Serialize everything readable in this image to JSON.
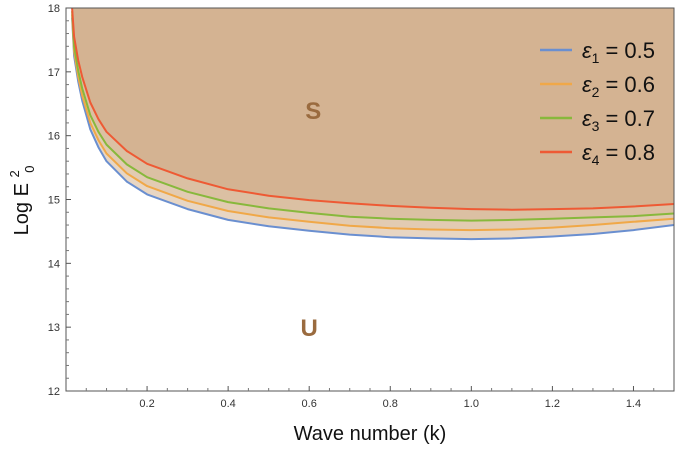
{
  "chart_data": {
    "type": "line",
    "title": "",
    "xlabel": "Wave number (k)",
    "ylabel": {
      "base": "Log E",
      "superscript": "2",
      "subscript": "0"
    },
    "xlim": [
      0.0,
      1.5
    ],
    "ylim": [
      12,
      18
    ],
    "xticks": [
      0.2,
      0.4,
      0.6,
      0.8,
      1.0,
      1.2,
      1.4
    ],
    "xtick_labels": [
      "0.2",
      "0.4",
      "0.6",
      "0.8",
      "1.0",
      "1.2",
      "1.4"
    ],
    "yticks": [
      12,
      13,
      14,
      15,
      16,
      17,
      18
    ],
    "ytick_labels": [
      "12",
      "13",
      "14",
      "15",
      "16",
      "17",
      "18"
    ],
    "grid": false,
    "legend_position": "top-right",
    "stable_region": {
      "label": "S",
      "x": 0.61,
      "y": 16.4,
      "fill": "#d4b392",
      "text_color": "#9a6b3f"
    },
    "unstable_region": {
      "label": "U",
      "x": 0.6,
      "y": 13.0,
      "text_color": "#9a6b3f"
    },
    "series": [
      {
        "legend_symbol": "ε",
        "legend_sub": "1",
        "legend_value": "= 0.5",
        "color": "#6a8fd0",
        "x": [
          0.015,
          0.02,
          0.03,
          0.04,
          0.06,
          0.08,
          0.1,
          0.15,
          0.2,
          0.3,
          0.4,
          0.5,
          0.6,
          0.7,
          0.8,
          0.9,
          1.0,
          1.1,
          1.2,
          1.3,
          1.4,
          1.5
        ],
        "y": [
          17.85,
          17.25,
          16.85,
          16.55,
          16.1,
          15.82,
          15.6,
          15.28,
          15.08,
          14.85,
          14.68,
          14.58,
          14.51,
          14.45,
          14.41,
          14.39,
          14.38,
          14.39,
          14.42,
          14.46,
          14.52,
          14.6
        ]
      },
      {
        "legend_symbol": "ε",
        "legend_sub": "2",
        "legend_value": "= 0.6",
        "color": "#f0a848",
        "x": [
          0.015,
          0.02,
          0.03,
          0.04,
          0.06,
          0.08,
          0.1,
          0.15,
          0.2,
          0.3,
          0.4,
          0.5,
          0.6,
          0.7,
          0.8,
          0.9,
          1.0,
          1.1,
          1.2,
          1.3,
          1.4,
          1.5
        ],
        "y": [
          17.9,
          17.32,
          16.92,
          16.63,
          16.2,
          15.93,
          15.72,
          15.41,
          15.21,
          14.98,
          14.82,
          14.72,
          14.65,
          14.59,
          14.55,
          14.53,
          14.52,
          14.53,
          14.56,
          14.6,
          14.65,
          14.7
        ]
      },
      {
        "legend_symbol": "ε",
        "legend_sub": "3",
        "legend_value": "= 0.7",
        "color": "#88b83c",
        "x": [
          0.015,
          0.02,
          0.03,
          0.04,
          0.06,
          0.08,
          0.1,
          0.15,
          0.2,
          0.3,
          0.4,
          0.5,
          0.6,
          0.7,
          0.8,
          0.9,
          1.0,
          1.1,
          1.2,
          1.3,
          1.4,
          1.5
        ],
        "y": [
          17.95,
          17.4,
          17.02,
          16.74,
          16.32,
          16.06,
          15.86,
          15.55,
          15.35,
          15.12,
          14.96,
          14.86,
          14.79,
          14.73,
          14.7,
          14.68,
          14.67,
          14.68,
          14.7,
          14.72,
          14.74,
          14.78
        ]
      },
      {
        "legend_symbol": "ε",
        "legend_sub": "4",
        "legend_value": "= 0.8",
        "color": "#ee5a34",
        "x": [
          0.015,
          0.02,
          0.03,
          0.04,
          0.06,
          0.08,
          0.1,
          0.15,
          0.2,
          0.3,
          0.4,
          0.5,
          0.6,
          0.7,
          0.8,
          0.9,
          1.0,
          1.1,
          1.2,
          1.3,
          1.4,
          1.5
        ],
        "y": [
          18.0,
          17.55,
          17.18,
          16.92,
          16.52,
          16.26,
          16.06,
          15.76,
          15.56,
          15.33,
          15.16,
          15.06,
          14.99,
          14.94,
          14.9,
          14.87,
          14.85,
          14.84,
          14.85,
          14.86,
          14.89,
          14.93
        ]
      }
    ]
  }
}
